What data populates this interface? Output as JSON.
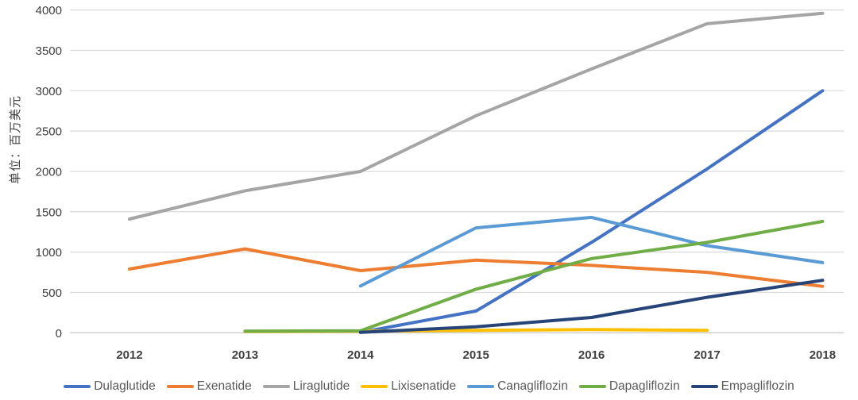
{
  "chart_data": {
    "type": "line",
    "title": "",
    "xlabel": "",
    "ylabel": "单位：百万美元",
    "ylim": [
      0,
      4000
    ],
    "ytick_step": 500,
    "yticks": [
      0,
      500,
      1000,
      1500,
      2000,
      2500,
      3000,
      3500,
      4000
    ],
    "grid": true,
    "legend_position": "bottom",
    "categories": [
      "2012",
      "2013",
      "2014",
      "2015",
      "2016",
      "2017",
      "2018"
    ],
    "series": [
      {
        "name": "Dulaglutide",
        "color": "#4472C4",
        "values": [
          null,
          null,
          5,
          270,
          1120,
          2030,
          3000
        ]
      },
      {
        "name": "Exenatide",
        "color": "#ED7D31",
        "values": [
          790,
          1040,
          770,
          900,
          835,
          750,
          575
        ]
      },
      {
        "name": "Liraglutide",
        "color": "#A5A5A5",
        "values": [
          1410,
          1760,
          2000,
          2690,
          3270,
          3830,
          3960
        ]
      },
      {
        "name": "Lixisenatide",
        "color": "#FFC000",
        "values": [
          null,
          15,
          20,
          30,
          40,
          30,
          null
        ]
      },
      {
        "name": "Canagliflozin",
        "color": "#5B9BD5",
        "values": [
          null,
          null,
          580,
          1300,
          1430,
          1080,
          870
        ]
      },
      {
        "name": "Dapagliflozin",
        "color": "#70AD47",
        "values": [
          null,
          20,
          25,
          540,
          920,
          1120,
          1380
        ]
      },
      {
        "name": "Empagliflozin",
        "color": "#264478",
        "values": [
          null,
          null,
          5,
          75,
          190,
          440,
          650
        ]
      }
    ],
    "gridline_color": "#D9D9D9",
    "zero_line_color": "#BFBFBF",
    "line_width": 4
  }
}
